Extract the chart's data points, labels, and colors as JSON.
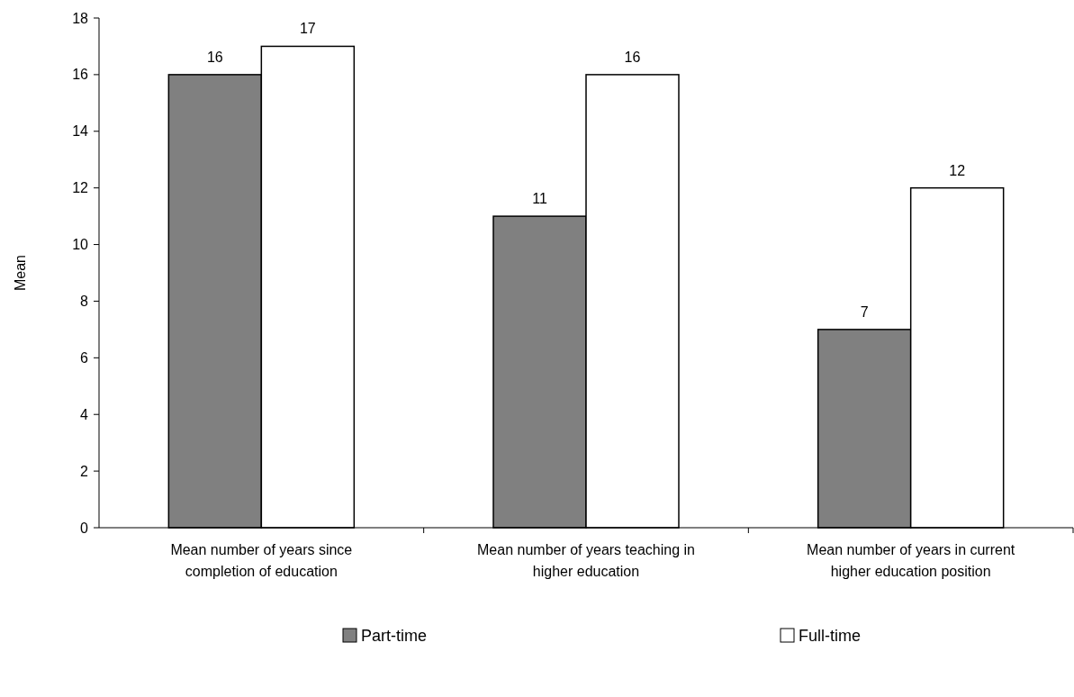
{
  "chart_data": {
    "type": "bar",
    "ylabel": "Mean",
    "categories": [
      "Mean number of years since completion of education",
      "Mean number of years teaching in higher education",
      "Mean number of years in current higher education position"
    ],
    "series": [
      {
        "name": "Part-time",
        "color": "#808080",
        "values": [
          16,
          11,
          7
        ]
      },
      {
        "name": "Full-time",
        "color": "#ffffff",
        "values": [
          17,
          16,
          12
        ]
      }
    ],
    "ylim": [
      0,
      18
    ],
    "yticks": [
      0,
      2,
      4,
      6,
      8,
      10,
      12,
      14,
      16,
      18
    ],
    "data_labels": true,
    "grid": false,
    "legend": "bottom"
  }
}
